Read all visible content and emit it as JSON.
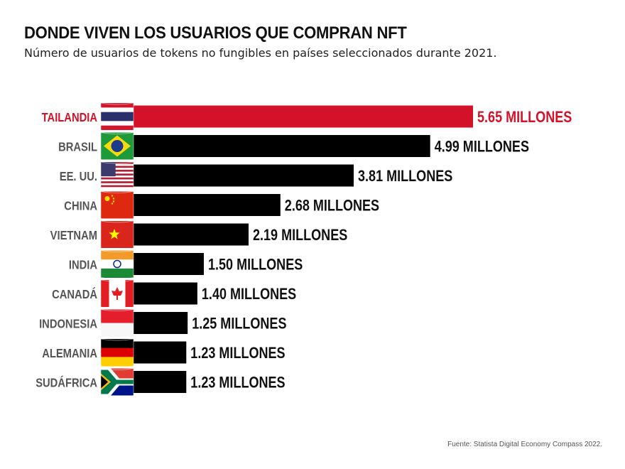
{
  "chart_data": {
    "type": "bar",
    "orientation": "horizontal",
    "title": "DONDE VIVEN LOS USUARIOS QUE COMPRAN NFT",
    "subtitle": "Número de usuarios de tokens no fungibles en países seleccionados durante 2021.",
    "categories": [
      "TAILANDIA",
      "BRASIL",
      "EE. UU.",
      "CHINA",
      "VIETNAM",
      "INDIA",
      "CANADÁ",
      "INDONESIA",
      "ALEMANIA",
      "SUDÁFRICA"
    ],
    "values": [
      5.65,
      4.99,
      3.81,
      2.68,
      2.19,
      1.5,
      1.4,
      1.25,
      1.23,
      1.23
    ],
    "value_labels": [
      "5.65 MILLONES",
      "4.99 MILLONES",
      "3.81 MILLONES",
      "2.68 MILLONES",
      "2.19 MILLONES",
      "1.50 MILLONES",
      "1.40 MILLONES",
      "1.25 MILLONES",
      "1.23 MILLONES",
      "1.23 MILLONES"
    ],
    "flags": [
      "thailand-flag-icon",
      "brazil-flag-icon",
      "usa-flag-icon",
      "china-flag-icon",
      "vietnam-flag-icon",
      "india-flag-icon",
      "canada-flag-icon",
      "indonesia-flag-icon",
      "germany-flag-icon",
      "south-africa-flag-icon"
    ],
    "highlight_index": 0,
    "colors": {
      "highlight": "#d3122a",
      "bar": "#000000",
      "label": "#555555",
      "value": "#111111"
    },
    "xlabel": "",
    "ylabel": "",
    "grid": false,
    "legend": "none"
  },
  "source": "Fuente: Statista Digital Economy Compass 2022."
}
